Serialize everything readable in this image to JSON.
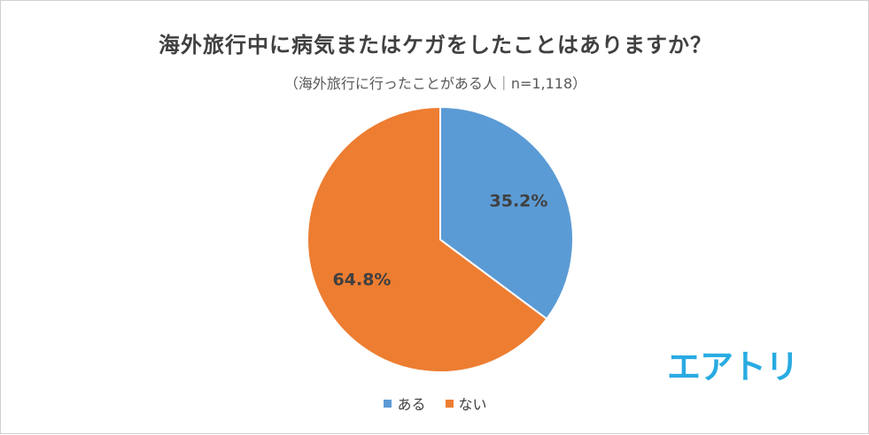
{
  "chart": {
    "title": "海外旅行中に病気またはケガをしたことはありますか？",
    "subtitle": "（海外旅行に行ったことがある人｜n=1,118）"
  },
  "brand": {
    "logo_text": "エアトリ",
    "logo_color": "#29abe2"
  },
  "chart_data": {
    "type": "pie",
    "title": "海外旅行中に病気またはケガをしたことはありますか？",
    "subtitle": "（海外旅行に行ったことがある人｜n=1,118）",
    "slices": [
      {
        "label": "ある",
        "value": 35.2,
        "display": "35.2%",
        "color": "#5b9bd5"
      },
      {
        "label": "ない",
        "value": 64.8,
        "display": "64.8%",
        "color": "#ed7d31"
      }
    ],
    "legend": {
      "position": "bottom",
      "entries": [
        "ある",
        "ない"
      ]
    }
  }
}
